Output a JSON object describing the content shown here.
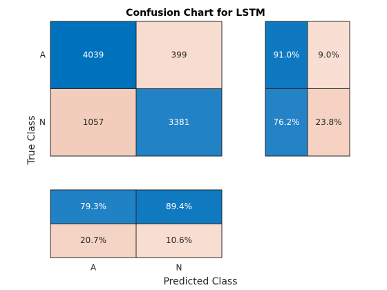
{
  "chart_data": {
    "type": "heatmap",
    "title": "Confusion Chart for LSTM",
    "xlabel": "Predicted Class",
    "ylabel": "True Class",
    "classes": [
      "A",
      "N"
    ],
    "matrix": [
      [
        4039,
        399
      ],
      [
        1057,
        3381
      ]
    ],
    "row_summary": [
      [
        "91.0%",
        "9.0%"
      ],
      [
        "76.2%",
        "23.8%"
      ]
    ],
    "column_summary": [
      [
        "79.3%",
        "89.4%"
      ],
      [
        "20.7%",
        "10.6%"
      ]
    ],
    "colors": {
      "correct_high": "#0072bd",
      "correct_mid": "#3d8fcc",
      "incorrect_high": "#f3cdbb",
      "incorrect_low": "#fbe5dd",
      "border": "#262626"
    }
  }
}
